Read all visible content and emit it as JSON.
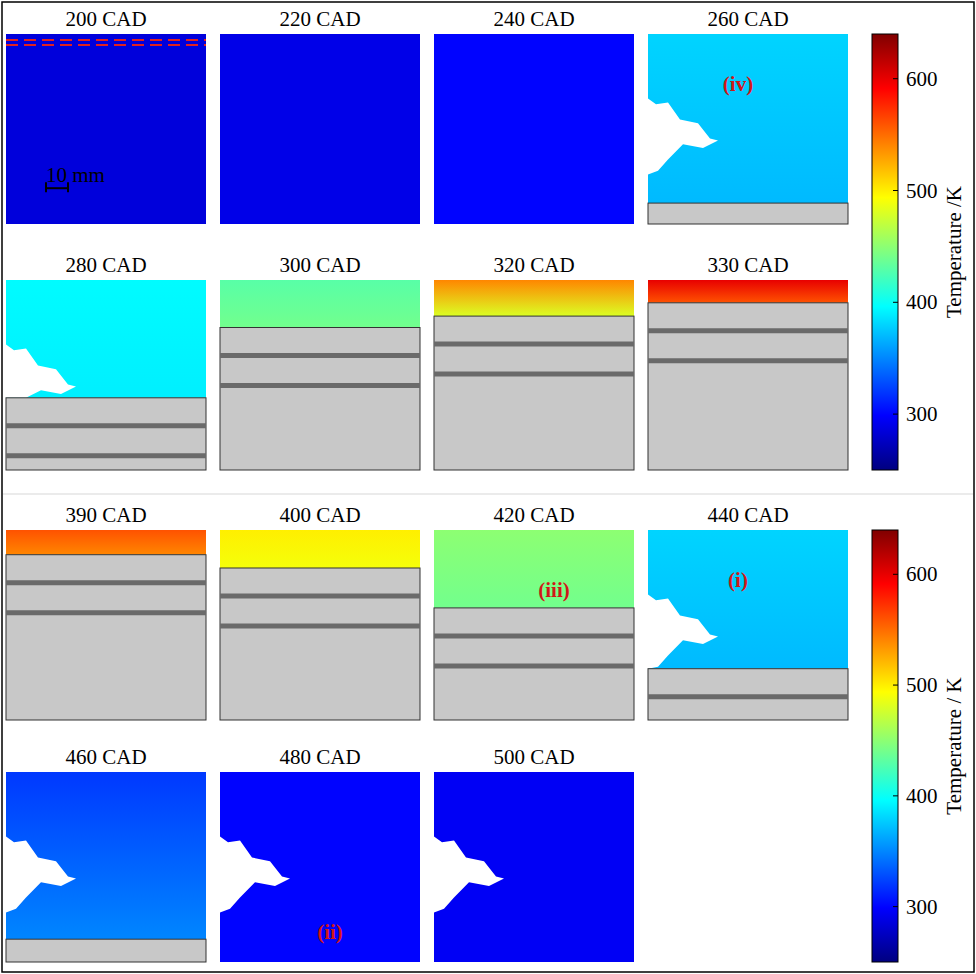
{
  "chart_data": {
    "type": "heatmap",
    "panels": [
      {
        "title": "200 CAD",
        "temperature": [
          285,
          285
        ],
        "piston_fraction": 0,
        "masked": false,
        "scale_bar": "10 mm"
      },
      {
        "title": "220 CAD",
        "temperature": [
          290,
          290
        ],
        "piston_fraction": 0,
        "masked": false
      },
      {
        "title": "240 CAD",
        "temperature": [
          300,
          300
        ],
        "piston_fraction": 0,
        "masked": false
      },
      {
        "title": "260 CAD",
        "temperature": [
          380,
          370
        ],
        "piston_fraction": 0.11,
        "masked": true,
        "annotation": "(iv)"
      },
      {
        "title": "280 CAD",
        "temperature": [
          395,
          390
        ],
        "piston_fraction": 0.38,
        "masked": true
      },
      {
        "title": "300 CAD",
        "temperature": [
          430,
          440
        ],
        "piston_fraction": 0.75,
        "masked": false
      },
      {
        "title": "320 CAD",
        "temperature": [
          540,
          480
        ],
        "piston_fraction": 0.81,
        "masked": false
      },
      {
        "title": "330 CAD",
        "temperature": [
          600,
          560
        ],
        "piston_fraction": 0.88,
        "masked": false
      },
      {
        "title": "390 CAD",
        "temperature": [
          560,
          540
        ],
        "piston_fraction": 0.87,
        "masked": false
      },
      {
        "title": "400 CAD",
        "temperature": [
          500,
          490
        ],
        "piston_fraction": 0.8,
        "masked": false
      },
      {
        "title": "420 CAD",
        "temperature": [
          450,
          440
        ],
        "piston_fraction": 0.59,
        "masked": false,
        "annotation": "(iii)"
      },
      {
        "title": "440 CAD",
        "temperature": [
          380,
          370
        ],
        "piston_fraction": 0.27,
        "masked": true,
        "annotation": "(i)"
      },
      {
        "title": "460 CAD",
        "temperature": [
          320,
          350
        ],
        "piston_fraction": 0.12,
        "masked": true
      },
      {
        "title": "480 CAD",
        "temperature": [
          300,
          300
        ],
        "piston_fraction": 0,
        "masked": true,
        "annotation": "(ii)"
      },
      {
        "title": "500 CAD",
        "temperature": [
          295,
          295
        ],
        "piston_fraction": 0,
        "masked": true
      }
    ],
    "colorbars": [
      {
        "label": "Temperature /K",
        "range": [
          250,
          640
        ],
        "ticks": [
          300,
          400,
          500,
          600
        ]
      },
      {
        "label": "Temperature / K",
        "range": [
          250,
          640
        ],
        "ticks": [
          300,
          400,
          500,
          600
        ]
      }
    ]
  }
}
